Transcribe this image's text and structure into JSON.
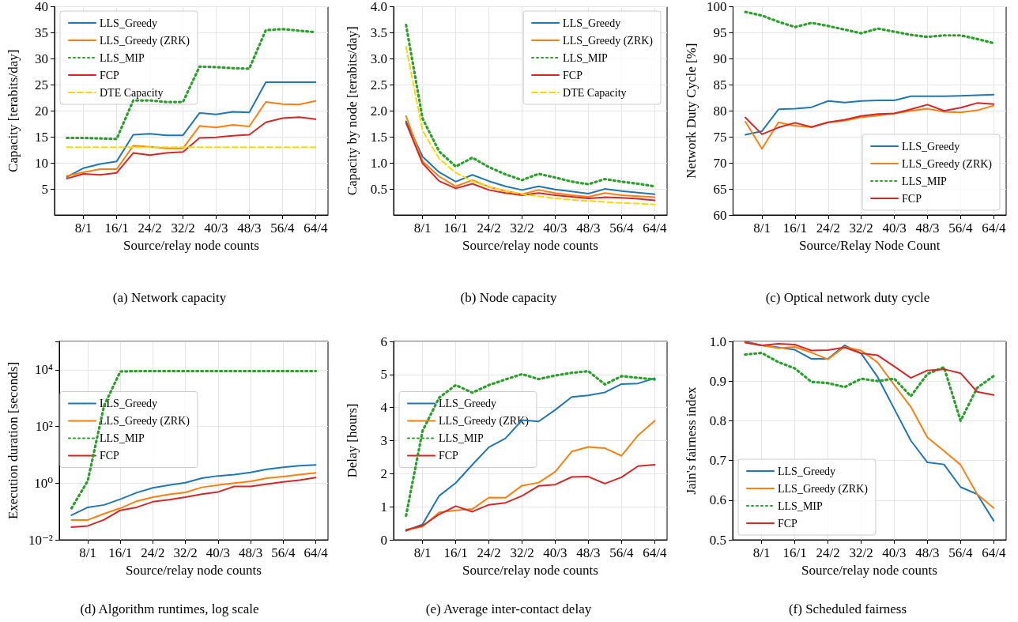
{
  "chart_data": [
    {
      "type": "line",
      "title": "(a) Network capacity",
      "xlabel": "Source/relay node counts",
      "ylabel": "Capacity [terabits/day]",
      "categories": [
        null,
        "8/1",
        null,
        "16/1",
        null,
        "24/2",
        null,
        "32/2",
        null,
        "40/3",
        null,
        "48/3",
        null,
        "56/4",
        null,
        "64/4"
      ],
      "ylim": [
        0,
        40
      ],
      "yticks": [
        5,
        10,
        15,
        20,
        25,
        30,
        35,
        40
      ],
      "grid": true,
      "legend": "top left",
      "series": [
        {
          "name": "LLS_Greedy",
          "color": "#1f77b4",
          "line_style": "solid",
          "values": [
            7.3,
            9.0,
            9.8,
            10.3,
            15.4,
            15.6,
            15.3,
            15.3,
            19.6,
            19.3,
            19.8,
            19.7,
            25.5,
            25.5,
            25.5,
            25.5
          ]
        },
        {
          "name": "LLS_Greedy (ZRK)",
          "color": "#ff7f0e",
          "line_style": "solid",
          "values": [
            7.5,
            8.2,
            8.8,
            8.8,
            13.3,
            13.1,
            12.8,
            12.8,
            17.1,
            16.8,
            17.3,
            17.0,
            21.7,
            21.3,
            21.2,
            21.9
          ]
        },
        {
          "name": "LLS_MIP",
          "color": "#2ca02c",
          "line_style": "dotted",
          "values": [
            14.8,
            14.8,
            14.7,
            14.6,
            22.0,
            22.0,
            21.7,
            21.7,
            28.5,
            28.4,
            28.2,
            28.1,
            35.5,
            35.7,
            35.4,
            35.1
          ]
        },
        {
          "name": "FCP",
          "color": "#d62728",
          "line_style": "solid",
          "values": [
            7.0,
            7.9,
            7.7,
            8.1,
            11.9,
            11.5,
            11.9,
            12.1,
            14.8,
            14.9,
            15.2,
            15.4,
            17.8,
            18.6,
            18.8,
            18.4
          ]
        },
        {
          "name": "DTE Capacity",
          "color": "#ffd700",
          "line_style": "dashed",
          "values": [
            13,
            13,
            13,
            13,
            13,
            13,
            13,
            13,
            13,
            13,
            13,
            13,
            13,
            13,
            13,
            13
          ]
        }
      ]
    },
    {
      "type": "line",
      "title": "(b) Node capacity",
      "xlabel": "Source/relay node counts",
      "ylabel": "Capacity by node [terabits/day]",
      "categories": [
        null,
        "8/1",
        null,
        "16/1",
        null,
        "24/2",
        null,
        "32/2",
        null,
        "40/3",
        null,
        "48/3",
        null,
        "56/4",
        null,
        "64/4"
      ],
      "ylim": [
        0,
        4
      ],
      "yticks": [
        0.5,
        {
          "value": 1,
          "label": "1.0"
        },
        1.5,
        {
          "value": 2,
          "label": "2.0"
        },
        2.5,
        {
          "value": 3,
          "label": "3.0"
        },
        3.5,
        {
          "value": 4,
          "label": "4.0"
        }
      ],
      "grid": true,
      "legend": "top right",
      "series": [
        {
          "name": "LLS_Greedy",
          "color": "#1f77b4",
          "line_style": "solid",
          "values": [
            1.8,
            1.12,
            0.82,
            0.64,
            0.77,
            0.65,
            0.55,
            0.48,
            0.55,
            0.49,
            0.45,
            0.41,
            0.5,
            0.46,
            0.43,
            0.4
          ]
        },
        {
          "name": "LLS_Greedy (ZRK)",
          "color": "#ff7f0e",
          "line_style": "solid",
          "values": [
            1.9,
            1.03,
            0.74,
            0.55,
            0.67,
            0.54,
            0.46,
            0.4,
            0.48,
            0.42,
            0.38,
            0.35,
            0.42,
            0.38,
            0.36,
            0.34
          ]
        },
        {
          "name": "LLS_MIP",
          "color": "#2ca02c",
          "line_style": "dotted",
          "values": [
            3.65,
            1.85,
            1.22,
            0.93,
            1.1,
            0.92,
            0.78,
            0.67,
            0.79,
            0.72,
            0.64,
            0.59,
            0.69,
            0.64,
            0.6,
            0.55
          ]
        },
        {
          "name": "FCP",
          "color": "#d62728",
          "line_style": "solid",
          "values": [
            1.77,
            0.99,
            0.65,
            0.51,
            0.6,
            0.48,
            0.42,
            0.38,
            0.42,
            0.38,
            0.35,
            0.32,
            0.34,
            0.33,
            0.31,
            0.28
          ]
        },
        {
          "name": "DTE Capacity",
          "color": "#ffd700",
          "line_style": "dashed",
          "values": [
            3.23,
            1.62,
            1.08,
            0.81,
            0.65,
            0.54,
            0.46,
            0.4,
            0.36,
            0.32,
            0.29,
            0.27,
            0.25,
            0.23,
            0.22,
            0.2
          ]
        }
      ]
    },
    {
      "type": "line",
      "title": "(c) Optical network duty cycle",
      "xlabel": "Source/Relay Node Count",
      "ylabel": "Network Duty Cycle [%]",
      "categories": [
        null,
        "8/1",
        null,
        "16/1",
        null,
        "24/2",
        null,
        "32/2",
        null,
        "40/3",
        null,
        "48/3",
        null,
        "56/4",
        null,
        "64/4"
      ],
      "ylim": [
        60,
        100
      ],
      "yticks": [
        60,
        65,
        70,
        75,
        80,
        85,
        90,
        95,
        100
      ],
      "grid": true,
      "legend": "bottom right",
      "series": [
        {
          "name": "LLS_Greedy",
          "color": "#1f77b4",
          "line_style": "solid",
          "values": [
            75.4,
            76.1,
            80.3,
            80.4,
            80.7,
            81.9,
            81.6,
            81.9,
            82.0,
            82.0,
            82.8,
            82.8,
            82.8,
            82.9,
            83.0,
            83.1
          ]
        },
        {
          "name": "LLS_Greedy (ZRK)",
          "color": "#ff7f0e",
          "line_style": "solid",
          "values": [
            77.9,
            72.7,
            77.8,
            77.1,
            76.9,
            77.8,
            78.1,
            78.8,
            79.1,
            79.5,
            80.0,
            80.4,
            79.8,
            79.7,
            80.1,
            81.0
          ]
        },
        {
          "name": "LLS_MIP",
          "color": "#2ca02c",
          "line_style": "dotted",
          "values": [
            99.0,
            98.3,
            97.1,
            96.1,
            96.9,
            96.3,
            95.6,
            94.9,
            95.8,
            95.2,
            94.6,
            94.2,
            94.5,
            94.5,
            93.8,
            93.0
          ]
        },
        {
          "name": "FCP",
          "color": "#d62728",
          "line_style": "solid",
          "values": [
            78.7,
            75.5,
            76.8,
            77.7,
            76.9,
            77.8,
            78.3,
            79.0,
            79.4,
            79.5,
            80.3,
            81.2,
            80.0,
            80.6,
            81.5,
            81.3
          ]
        }
      ]
    },
    {
      "type": "line",
      "title": "(d) Algorithm runtimes, log scale",
      "xlabel": "Source/relay node counts",
      "ylabel": "Execution duration [seconds]",
      "categories": [
        null,
        "8/1",
        null,
        "16/1",
        null,
        "24/2",
        null,
        "32/2",
        null,
        "40/3",
        null,
        "48/3",
        null,
        "56/4",
        null,
        "64/4"
      ],
      "ylim": [
        0.01,
        100000
      ],
      "yticks": [
        {
          "value": 0.01,
          "label": "10⁻²"
        },
        {
          "value": 1,
          "label": "10⁰"
        },
        {
          "value": 100,
          "label": "10²"
        },
        {
          "value": 10000,
          "label": "10⁴"
        }
      ],
      "log": "y",
      "grid": true,
      "legend": "left",
      "series": [
        {
          "name": "LLS_Greedy",
          "color": "#1f77b4",
          "line_style": "solid",
          "values": [
            0.074,
            0.14,
            0.17,
            0.27,
            0.46,
            0.68,
            0.85,
            1.04,
            1.5,
            1.8,
            2.0,
            2.4,
            3.1,
            3.6,
            4.1,
            4.4
          ]
        },
        {
          "name": "LLS_Greedy (ZRK)",
          "color": "#ff7f0e",
          "line_style": "solid",
          "values": [
            0.05,
            0.05,
            0.083,
            0.13,
            0.23,
            0.32,
            0.4,
            0.47,
            0.71,
            0.85,
            1.0,
            1.16,
            1.5,
            1.7,
            2.0,
            2.3
          ]
        },
        {
          "name": "LLS_MIP",
          "color": "#2ca02c",
          "line_style": "dotted",
          "values": [
            0.13,
            1.2,
            540,
            8700,
            9000,
            9000,
            9000,
            9000,
            9000,
            9000,
            9000,
            9000,
            9000,
            9000,
            9000,
            9000
          ]
        },
        {
          "name": "FCP",
          "color": "#d62728",
          "line_style": "solid",
          "values": [
            0.028,
            0.031,
            0.051,
            0.11,
            0.14,
            0.22,
            0.26,
            0.32,
            0.41,
            0.49,
            0.76,
            0.76,
            0.93,
            1.1,
            1.27,
            1.57
          ]
        }
      ]
    },
    {
      "type": "line",
      "title": "(e) Average inter-contact delay",
      "xlabel": "Source/relay node counts",
      "ylabel": "Delay [hours]",
      "categories": [
        null,
        "8/1",
        null,
        "16/1",
        null,
        "24/2",
        null,
        "32/2",
        null,
        "40/3",
        null,
        "48/3",
        null,
        "56/4",
        null,
        "64/4"
      ],
      "ylim": [
        0,
        6
      ],
      "yticks": [
        0,
        1,
        2,
        3,
        4,
        5,
        6
      ],
      "grid": true,
      "legend": "left",
      "series": [
        {
          "name": "LLS_Greedy",
          "color": "#1f77b4",
          "line_style": "solid",
          "values": [
            0.27,
            0.47,
            1.33,
            1.72,
            2.27,
            2.8,
            3.07,
            3.62,
            3.58,
            3.93,
            4.32,
            4.37,
            4.46,
            4.71,
            4.73,
            4.89
          ]
        },
        {
          "name": "LLS_Greedy (ZRK)",
          "color": "#ff7f0e",
          "line_style": "solid",
          "values": [
            0.3,
            0.4,
            0.83,
            0.89,
            0.93,
            1.28,
            1.27,
            1.64,
            1.73,
            2.06,
            2.67,
            2.81,
            2.77,
            2.54,
            3.16,
            3.6
          ]
        },
        {
          "name": "LLS_MIP",
          "color": "#2ca02c",
          "line_style": "dotted",
          "values": [
            0.73,
            3.3,
            4.3,
            4.68,
            4.45,
            4.68,
            4.85,
            5.01,
            4.86,
            4.97,
            5.05,
            5.1,
            4.7,
            4.95,
            4.9,
            4.85
          ]
        },
        {
          "name": "FCP",
          "color": "#d62728",
          "line_style": "solid",
          "values": [
            0.3,
            0.43,
            0.77,
            1.02,
            0.85,
            1.06,
            1.12,
            1.33,
            1.63,
            1.67,
            1.9,
            1.91,
            1.7,
            1.89,
            2.23,
            2.27
          ]
        }
      ]
    },
    {
      "type": "line",
      "title": "(f) Scheduled fairness",
      "xlabel": "Source/relay node counts",
      "ylabel": "Jain's fairness index",
      "categories": [
        null,
        "8/1",
        null,
        "16/1",
        null,
        "24/2",
        null,
        "32/2",
        null,
        "40/3",
        null,
        "48/3",
        null,
        "56/4",
        null,
        "64/4"
      ],
      "ylim": [
        0.5,
        1
      ],
      "yticks": [
        0.5,
        0.6,
        0.7,
        0.8,
        0.9,
        {
          "value": 1,
          "label": "1.0"
        }
      ],
      "grid": true,
      "legend": "bottom left",
      "series": [
        {
          "name": "LLS_Greedy",
          "color": "#1f77b4",
          "line_style": "solid",
          "values": [
            1.0,
            0.99,
            0.985,
            0.979,
            0.956,
            0.956,
            0.99,
            0.97,
            0.91,
            0.83,
            0.75,
            0.695,
            0.69,
            0.633,
            0.615,
            0.548
          ]
        },
        {
          "name": "LLS_Greedy (ZRK)",
          "color": "#ff7f0e",
          "line_style": "solid",
          "values": [
            0.998,
            0.99,
            0.983,
            0.986,
            0.972,
            0.955,
            0.986,
            0.977,
            0.947,
            0.89,
            0.835,
            0.758,
            0.724,
            0.689,
            0.615,
            0.58
          ]
        },
        {
          "name": "LLS_MIP",
          "color": "#2ca02c",
          "line_style": "dotted",
          "values": [
            0.967,
            0.971,
            0.948,
            0.932,
            0.898,
            0.895,
            0.885,
            0.906,
            0.9,
            0.906,
            0.862,
            0.918,
            0.935,
            0.8,
            0.883,
            0.913
          ]
        },
        {
          "name": "FCP",
          "color": "#d62728",
          "line_style": "solid",
          "values": [
            0.997,
            0.99,
            0.994,
            0.992,
            0.977,
            0.978,
            0.985,
            0.97,
            0.965,
            0.937,
            0.908,
            0.927,
            0.93,
            0.92,
            0.873,
            0.865
          ]
        }
      ]
    }
  ]
}
